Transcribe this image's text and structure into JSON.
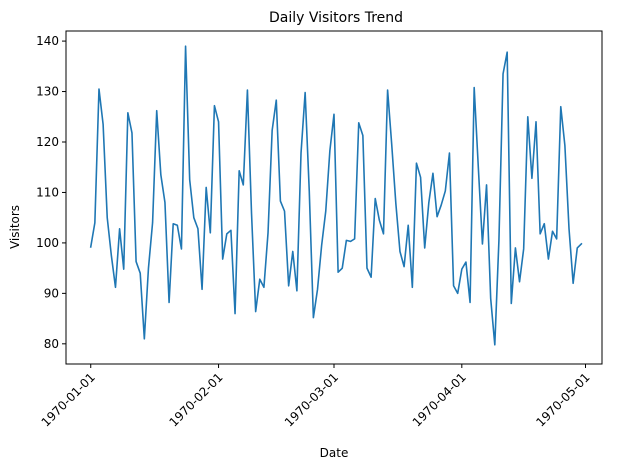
{
  "chart_data": {
    "type": "line",
    "title": "Daily Visitors Trend",
    "xlabel": "Date",
    "ylabel": "Visitors",
    "x_ticks": [
      "1970-01-01",
      "1970-02-01",
      "1970-03-01",
      "1970-04-01",
      "1970-05-01"
    ],
    "y_ticks": [
      80,
      90,
      100,
      110,
      120,
      130,
      140
    ],
    "xlim": [
      "1969-12-26",
      "1970-05-05"
    ],
    "ylim": [
      76.0,
      142.0
    ],
    "grid": false,
    "legend": "none",
    "series": [
      {
        "color": "#1f77b4",
        "x": [
          "1970-01-01",
          "1970-01-02",
          "1970-01-03",
          "1970-01-04",
          "1970-01-05",
          "1970-01-06",
          "1970-01-07",
          "1970-01-08",
          "1970-01-09",
          "1970-01-10",
          "1970-01-11",
          "1970-01-12",
          "1970-01-13",
          "1970-01-14",
          "1970-01-15",
          "1970-01-16",
          "1970-01-17",
          "1970-01-18",
          "1970-01-19",
          "1970-01-20",
          "1970-01-21",
          "1970-01-22",
          "1970-01-23",
          "1970-01-24",
          "1970-01-25",
          "1970-01-26",
          "1970-01-27",
          "1970-01-28",
          "1970-01-29",
          "1970-01-30",
          "1970-01-31",
          "1970-02-01",
          "1970-02-02",
          "1970-02-03",
          "1970-02-04",
          "1970-02-05",
          "1970-02-06",
          "1970-02-07",
          "1970-02-08",
          "1970-02-09",
          "1970-02-10",
          "1970-02-11",
          "1970-02-12",
          "1970-02-13",
          "1970-02-14",
          "1970-02-15",
          "1970-02-16",
          "1970-02-17",
          "1970-02-18",
          "1970-02-19",
          "1970-02-20",
          "1970-02-21",
          "1970-02-22",
          "1970-02-23",
          "1970-02-24",
          "1970-02-25",
          "1970-02-26",
          "1970-02-27",
          "1970-02-28",
          "1970-03-01",
          "1970-03-02",
          "1970-03-03",
          "1970-03-04",
          "1970-03-05",
          "1970-03-06",
          "1970-03-07",
          "1970-03-08",
          "1970-03-09",
          "1970-03-10",
          "1970-03-11",
          "1970-03-12",
          "1970-03-13",
          "1970-03-14",
          "1970-03-15",
          "1970-03-16",
          "1970-03-17",
          "1970-03-18",
          "1970-03-19",
          "1970-03-20",
          "1970-03-21",
          "1970-03-22",
          "1970-03-23",
          "1970-03-24",
          "1970-03-25",
          "1970-03-26",
          "1970-03-27",
          "1970-03-28",
          "1970-03-29",
          "1970-03-30",
          "1970-03-31",
          "1970-04-01",
          "1970-04-02",
          "1970-04-03",
          "1970-04-04",
          "1970-04-05",
          "1970-04-06",
          "1970-04-07",
          "1970-04-08",
          "1970-04-09",
          "1970-04-10",
          "1970-04-11",
          "1970-04-12",
          "1970-04-13",
          "1970-04-14",
          "1970-04-15",
          "1970-04-16",
          "1970-04-17",
          "1970-04-18",
          "1970-04-19",
          "1970-04-20",
          "1970-04-21",
          "1970-04-22",
          "1970-04-23",
          "1970-04-24",
          "1970-04-25",
          "1970-04-26",
          "1970-04-27",
          "1970-04-28",
          "1970-04-29",
          "1970-04-30"
        ],
        "y": [
          99.2,
          104.0,
          130.5,
          123.5,
          105.0,
          97.5,
          91.2,
          102.8,
          94.8,
          125.8,
          121.8,
          96.3,
          94.0,
          81.0,
          95.0,
          104.0,
          126.2,
          113.5,
          108.0,
          88.2,
          103.8,
          103.5,
          98.8,
          139.0,
          112.5,
          105.0,
          102.8,
          90.8,
          111.0,
          102.0,
          127.2,
          124.0,
          96.8,
          101.8,
          102.5,
          86.0,
          114.3,
          111.5,
          130.3,
          105.8,
          86.4,
          92.8,
          91.2,
          102.0,
          122.3,
          128.3,
          108.3,
          106.3,
          91.5,
          98.3,
          90.5,
          117.8,
          129.8,
          110.3,
          85.2,
          90.8,
          99.5,
          106.3,
          118.3,
          125.5,
          94.2,
          95.0,
          100.5,
          100.3,
          100.8,
          123.8,
          121.3,
          95.0,
          93.2,
          108.8,
          104.5,
          101.8,
          130.3,
          119.5,
          107.8,
          98.3,
          95.3,
          103.5,
          91.2,
          115.8,
          113.0,
          99.0,
          108.0,
          113.8,
          105.2,
          107.5,
          110.3,
          117.8,
          91.5,
          90.0,
          94.8,
          96.2,
          88.2,
          130.8,
          115.0,
          99.8,
          111.5,
          89.0,
          79.8,
          100.5,
          133.5,
          137.8,
          88.0,
          99.0,
          92.3,
          98.8,
          125.0,
          112.8,
          124.0,
          101.8,
          103.8,
          96.8,
          102.3,
          100.8,
          127.0,
          119.3,
          102.8,
          92.0,
          99.0,
          99.8
        ]
      }
    ]
  }
}
